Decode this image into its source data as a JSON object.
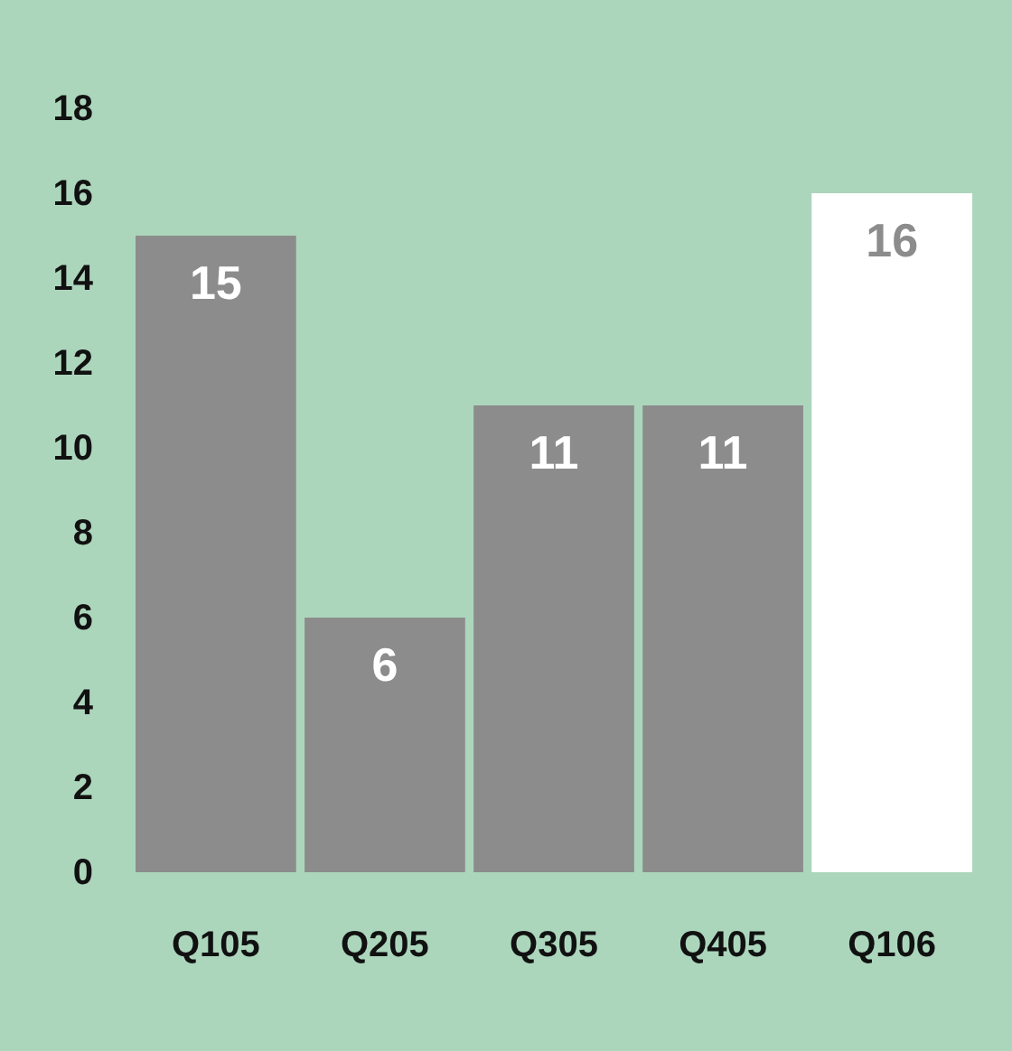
{
  "chart_data": {
    "type": "bar",
    "categories": [
      "Q105",
      "Q205",
      "Q305",
      "Q405",
      "Q106"
    ],
    "values": [
      15,
      6,
      11,
      11,
      16
    ],
    "colors": [
      "#8c8c8c",
      "#8c8c8c",
      "#8c8c8c",
      "#8c8c8c",
      "#ffffff"
    ],
    "ylim": [
      0,
      18
    ],
    "yticks": [
      0,
      2,
      4,
      6,
      8,
      10,
      12,
      14,
      16,
      18
    ],
    "grid": false,
    "data_labels": true
  }
}
